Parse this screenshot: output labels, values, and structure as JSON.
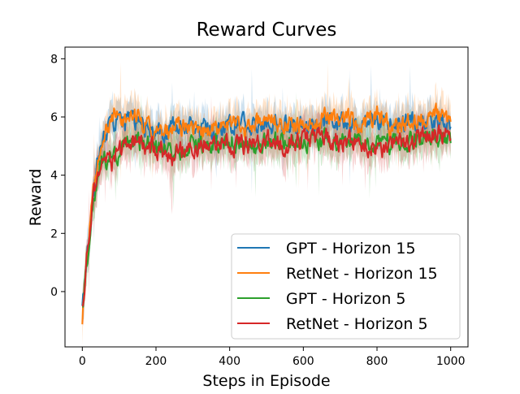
{
  "chart_data": {
    "type": "line",
    "title": "Reward Curves",
    "xlabel": "Steps in Episode",
    "ylabel": "Reward",
    "xlim": [
      -47,
      1047
    ],
    "ylim": [
      -1.9,
      8.4
    ],
    "xticks": [
      0,
      200,
      400,
      600,
      800,
      1000
    ],
    "yticks": [
      0,
      2,
      4,
      6,
      8
    ],
    "grid": false,
    "legend_position": "bottom-right",
    "shaded_band": "fluctuation band around each series",
    "series": [
      {
        "name": "GPT - Horizon 15",
        "color": "#1f77b4",
        "x": [
          0,
          10,
          20,
          30,
          40,
          50,
          60,
          70,
          80,
          100,
          120,
          150,
          200,
          250,
          300,
          350,
          400,
          450,
          500,
          550,
          600,
          650,
          700,
          750,
          800,
          850,
          900,
          950,
          1000
        ],
        "y": [
          -0.6,
          0.8,
          2.1,
          3.4,
          4.3,
          5.0,
          5.3,
          5.6,
          5.8,
          5.9,
          5.8,
          5.9,
          5.4,
          5.6,
          5.6,
          5.5,
          5.7,
          5.7,
          5.8,
          5.7,
          5.8,
          5.9,
          5.8,
          5.9,
          5.9,
          5.8,
          5.8,
          5.9,
          5.7
        ]
      },
      {
        "name": "RetNet - Horizon 15",
        "color": "#ff7f0e",
        "x": [
          0,
          10,
          20,
          30,
          40,
          50,
          60,
          70,
          80,
          100,
          120,
          150,
          200,
          250,
          300,
          350,
          400,
          450,
          500,
          550,
          600,
          650,
          700,
          750,
          800,
          850,
          900,
          950,
          1000
        ],
        "y": [
          -0.9,
          0.9,
          2.2,
          3.6,
          4.5,
          5.1,
          5.5,
          5.7,
          6.0,
          6.1,
          5.8,
          6.0,
          5.3,
          5.7,
          5.6,
          5.5,
          5.8,
          5.6,
          5.9,
          5.8,
          5.7,
          6.0,
          5.9,
          5.8,
          6.1,
          5.6,
          5.8,
          6.1,
          5.9
        ]
      },
      {
        "name": "GPT - Horizon 5",
        "color": "#2ca02c",
        "x": [
          0,
          10,
          20,
          30,
          40,
          50,
          60,
          70,
          80,
          100,
          120,
          150,
          200,
          250,
          300,
          350,
          400,
          450,
          500,
          550,
          600,
          650,
          700,
          750,
          800,
          850,
          900,
          950,
          1000
        ],
        "y": [
          -0.5,
          0.6,
          1.8,
          3.0,
          3.9,
          4.4,
          4.5,
          4.6,
          4.7,
          4.8,
          5.0,
          5.1,
          4.9,
          4.8,
          5.0,
          5.1,
          5.1,
          5.0,
          5.2,
          5.1,
          5.1,
          5.2,
          5.1,
          5.2,
          5.1,
          5.1,
          5.2,
          5.3,
          5.2
        ]
      },
      {
        "name": "RetNet - Horizon 5",
        "color": "#d62728",
        "x": [
          0,
          10,
          20,
          30,
          40,
          50,
          60,
          70,
          80,
          100,
          120,
          150,
          200,
          250,
          300,
          350,
          400,
          450,
          500,
          550,
          600,
          650,
          700,
          750,
          800,
          850,
          900,
          950,
          1000
        ],
        "y": [
          -0.7,
          0.7,
          2.0,
          3.2,
          4.0,
          4.5,
          4.6,
          4.5,
          4.4,
          4.7,
          5.1,
          5.2,
          4.8,
          4.7,
          5.0,
          5.2,
          5.0,
          5.1,
          5.3,
          5.0,
          5.2,
          5.3,
          5.1,
          5.2,
          4.9,
          5.1,
          5.2,
          5.5,
          5.3
        ]
      }
    ]
  }
}
